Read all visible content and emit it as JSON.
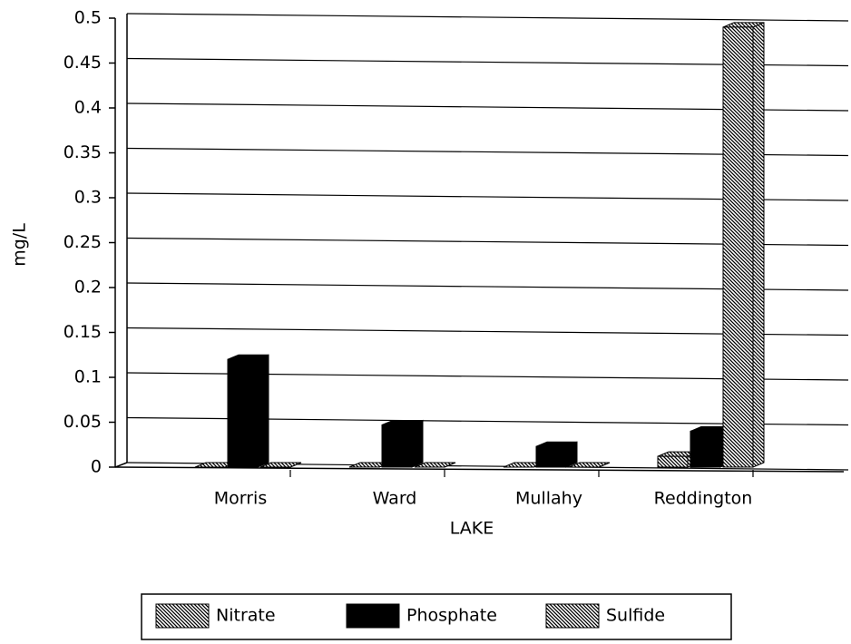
{
  "chart_data": {
    "type": "bar3d",
    "x_label": "LAKE",
    "y_label": "mg/L",
    "categories": [
      "Morris",
      "Ward",
      "Mullahy",
      "Reddington"
    ],
    "series": [
      {
        "name": "Nitrate",
        "color": "#000000",
        "pattern": "hatch",
        "values": [
          0,
          0,
          0,
          0.012
        ]
      },
      {
        "name": "Phosphate",
        "color": "#000000",
        "pattern": "solid",
        "values": [
          0.12,
          0.047,
          0.023,
          0.04
        ]
      },
      {
        "name": "Sulfide",
        "color": "#000000",
        "pattern": "hatch",
        "values": [
          0,
          0,
          0,
          0.49
        ]
      }
    ],
    "ylim": [
      0,
      0.5
    ],
    "yticks": [
      0,
      0.05,
      0.1,
      0.15,
      0.2,
      0.25,
      0.3,
      0.35,
      0.4,
      0.45,
      0.5
    ],
    "grid": true,
    "legend": "bottom"
  }
}
